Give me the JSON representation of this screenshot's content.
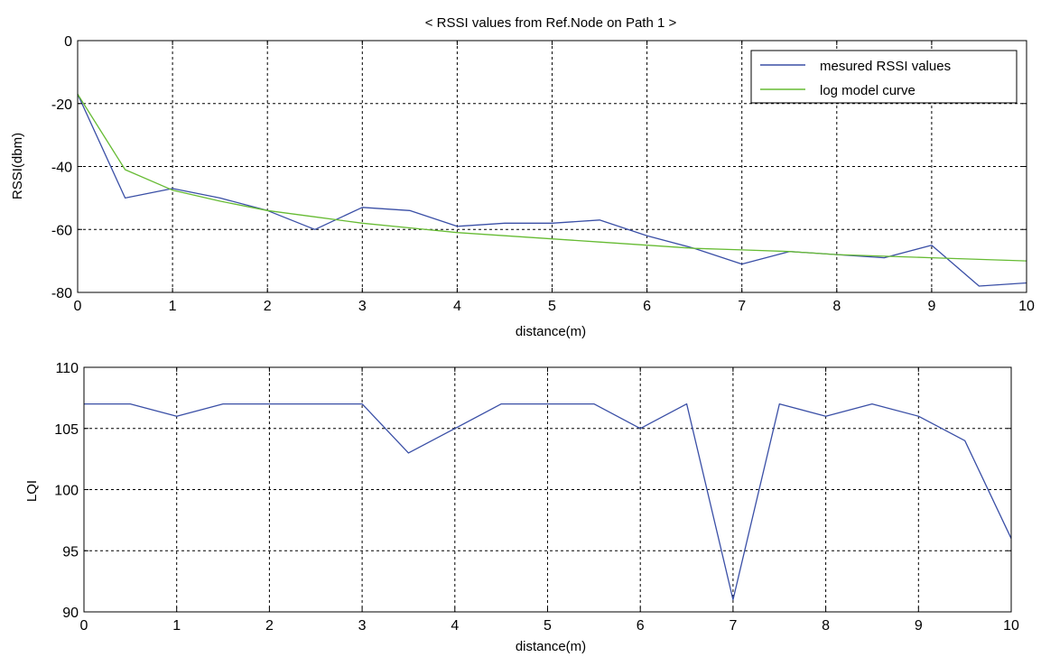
{
  "figure": {
    "background": "#ffffff"
  },
  "chart_data": [
    {
      "type": "line",
      "title": "< RSSI values from Ref.Node on Path 1 >",
      "xlabel": "distance(m)",
      "ylabel": "RSSI(dbm)",
      "xlim": [
        0,
        10
      ],
      "ylim": [
        -80,
        0
      ],
      "xticks": [
        "0",
        "1",
        "2",
        "3",
        "4",
        "5",
        "6",
        "7",
        "8",
        "9",
        "10"
      ],
      "yticks": [
        "0",
        "-20",
        "-40",
        "-60",
        "-80"
      ],
      "grid": true,
      "legend_position": "top-right",
      "series": [
        {
          "name": "mesured RSSI values",
          "color": "#3a4fa6",
          "x": [
            0,
            0.5,
            1,
            1.5,
            2,
            2.5,
            3,
            3.5,
            4,
            4.5,
            5,
            5.5,
            6,
            6.5,
            7,
            7.5,
            8,
            8.5,
            9,
            9.5,
            10
          ],
          "y": [
            -17,
            -50,
            -47,
            -50,
            -54,
            -60,
            -53,
            -54,
            -59,
            -58,
            -58,
            -57,
            -62,
            -66,
            -71,
            -67,
            -68,
            -69,
            -65,
            -78,
            -77
          ]
        },
        {
          "name": "log model curve",
          "color": "#66bb33",
          "x": [
            0,
            0.5,
            1,
            1.5,
            2,
            2.5,
            3,
            3.5,
            4,
            4.5,
            5,
            5.5,
            6,
            6.5,
            7,
            7.5,
            8,
            8.5,
            9,
            9.5,
            10
          ],
          "y": [
            -17,
            -41,
            -47.5,
            -51,
            -54,
            -56,
            -58,
            -59.5,
            -61,
            -62,
            -63,
            -64,
            -65,
            -66,
            -66.5,
            -67,
            -68,
            -68.5,
            -69,
            -69.5,
            -70
          ]
        }
      ]
    },
    {
      "type": "line",
      "title": "",
      "xlabel": "distance(m)",
      "ylabel": "LQI",
      "xlim": [
        0,
        10
      ],
      "ylim": [
        90,
        110
      ],
      "xticks": [
        "0",
        "1",
        "2",
        "3",
        "4",
        "5",
        "6",
        "7",
        "8",
        "9",
        "10"
      ],
      "yticks": [
        "110",
        "105",
        "100",
        "95",
        "90"
      ],
      "grid": true,
      "series": [
        {
          "color": "#3a4fa6",
          "x": [
            0,
            0.5,
            1,
            1.5,
            2,
            2.5,
            3,
            3.5,
            4,
            4.5,
            5,
            5.5,
            6,
            6.5,
            7,
            7.5,
            8,
            8.5,
            9,
            9.5,
            10
          ],
          "y": [
            107,
            107,
            106,
            107,
            107,
            107,
            107,
            103,
            105,
            107,
            107,
            107,
            105,
            107,
            91,
            107,
            106,
            107,
            106,
            104,
            96
          ]
        }
      ]
    }
  ]
}
